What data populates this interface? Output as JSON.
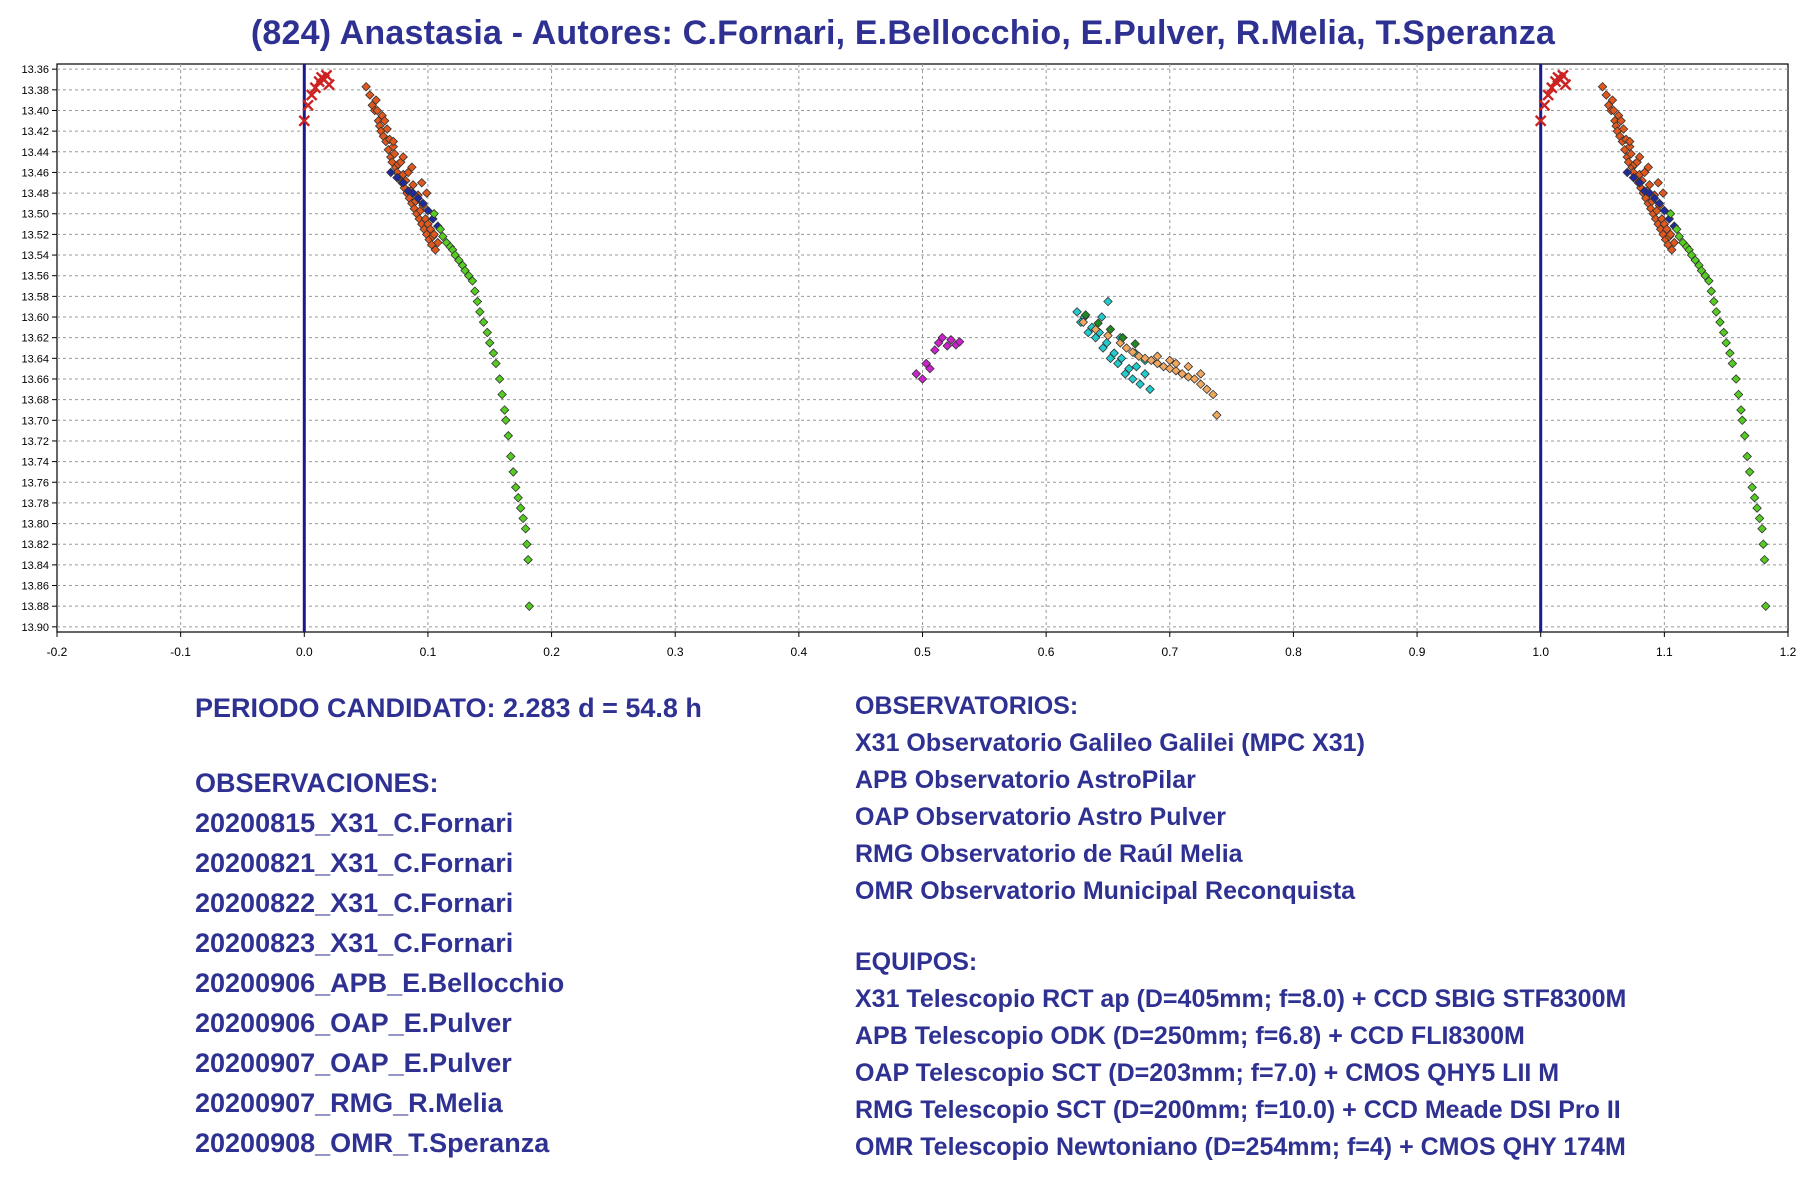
{
  "title": "(824) Anastasia - Autores: C.Fornari, E.Bellocchio, E.Pulver, R.Melia, T.Speranza",
  "left_panel": {
    "period": "PERIODO CANDIDATO: 2.283 d = 54.8 h",
    "observations_header": "OBSERVACIONES:",
    "observations": [
      "20200815_X31_C.Fornari",
      "20200821_X31_C.Fornari",
      "20200822_X31_C.Fornari",
      "20200823_X31_C.Fornari",
      "20200906_APB_E.Bellocchio",
      "20200906_OAP_E.Pulver",
      "20200907_OAP_E.Pulver",
      "20200907_RMG_R.Melia",
      "20200908_OMR_T.Speranza"
    ]
  },
  "right_panel": {
    "observatories_header": "OBSERVATORIOS:",
    "observatories": [
      "X31 Observatorio Galileo Galilei (MPC X31)",
      "APB Observatorio AstroPilar",
      "OAP Observatorio Astro Pulver",
      "RMG Observatorio de Raúl Melia",
      "OMR Observatorio Municipal Reconquista"
    ],
    "equipment_header": "EQUIPOS:",
    "equipment": [
      "X31 Telescopio RCT ap (D=405mm; f=8.0) + CCD SBIG STF8300M",
      "APB Telescopio ODK (D=250mm; f=6.8) + CCD FLI8300M",
      "OAP Telescopio SCT (D=203mm; f=7.0) + CMOS QHY5 LII M",
      "RMG Telescopio SCT (D=200mm; f=10.0) + CCD Meade DSI Pro II",
      "OMR Telescopio Newtoniano (D=254mm; f=4) + CMOS QHY 174M"
    ]
  },
  "chart_data": {
    "type": "scatter",
    "title": "(824) Anastasia - Autores: C.Fornari, E.Bellocchio, E.Pulver, R.Melia, T.Speranza",
    "xlabel": "",
    "ylabel": "",
    "xlim": [
      -0.2,
      1.2
    ],
    "ylim": [
      13.355,
      13.905
    ],
    "y_inverted": true,
    "grid": true,
    "x_ticks": [
      "-0.2",
      "-0.1",
      "0.0",
      "0.1",
      "0.2",
      "0.3",
      "0.4",
      "0.5",
      "0.6",
      "0.7",
      "0.8",
      "0.9",
      "1.0",
      "1.1",
      "1.2"
    ],
    "y_ticks": [
      "13.36",
      "13.38",
      "13.40",
      "13.42",
      "13.44",
      "13.46",
      "13.48",
      "13.50",
      "13.52",
      "13.54",
      "13.56",
      "13.58",
      "13.60",
      "13.62",
      "13.64",
      "13.66",
      "13.68",
      "13.70",
      "13.72",
      "13.74",
      "13.76",
      "13.78",
      "13.80",
      "13.82",
      "13.84",
      "13.86",
      "13.88",
      "13.90"
    ],
    "zero_phase_lines": [
      0.0,
      1.0
    ],
    "repeat_offset": 1.0,
    "repeat_xmax": 1.2,
    "series": [
      {
        "color": "#cc2222",
        "marker": "x",
        "points": [
          [
            0.0,
            13.41
          ],
          [
            0.003,
            13.395
          ],
          [
            0.006,
            13.385
          ],
          [
            0.009,
            13.378
          ],
          [
            0.012,
            13.372
          ],
          [
            0.014,
            13.368
          ],
          [
            0.016,
            13.37
          ],
          [
            0.018,
            13.366
          ],
          [
            0.02,
            13.375
          ]
        ]
      },
      {
        "color": "#e0581e",
        "marker": "diamond",
        "points": [
          [
            0.05,
            13.377
          ],
          [
            0.053,
            13.385
          ],
          [
            0.055,
            13.395
          ],
          [
            0.057,
            13.4
          ],
          [
            0.058,
            13.39
          ],
          [
            0.06,
            13.41
          ],
          [
            0.061,
            13.415
          ],
          [
            0.062,
            13.42
          ],
          [
            0.063,
            13.405
          ],
          [
            0.064,
            13.425
          ],
          [
            0.066,
            13.43
          ],
          [
            0.067,
            13.418
          ],
          [
            0.068,
            13.438
          ],
          [
            0.069,
            13.428
          ],
          [
            0.07,
            13.445
          ],
          [
            0.071,
            13.45
          ],
          [
            0.072,
            13.435
          ],
          [
            0.073,
            13.442
          ],
          [
            0.074,
            13.455
          ],
          [
            0.075,
            13.46
          ],
          [
            0.076,
            13.452
          ],
          [
            0.077,
            13.465
          ],
          [
            0.078,
            13.45
          ],
          [
            0.079,
            13.47
          ],
          [
            0.08,
            13.462
          ],
          [
            0.081,
            13.475
          ],
          [
            0.082,
            13.468
          ],
          [
            0.083,
            13.48
          ],
          [
            0.084,
            13.46
          ],
          [
            0.085,
            13.485
          ],
          [
            0.086,
            13.478
          ],
          [
            0.087,
            13.49
          ],
          [
            0.088,
            13.472
          ],
          [
            0.089,
            13.495
          ],
          [
            0.09,
            13.488
          ],
          [
            0.091,
            13.5
          ],
          [
            0.092,
            13.482
          ],
          [
            0.093,
            13.505
          ],
          [
            0.094,
            13.497
          ],
          [
            0.095,
            13.51
          ],
          [
            0.096,
            13.492
          ],
          [
            0.097,
            13.515
          ],
          [
            0.098,
            13.505
          ],
          [
            0.099,
            13.52
          ],
          [
            0.1,
            13.51
          ],
          [
            0.101,
            13.525
          ],
          [
            0.102,
            13.515
          ],
          [
            0.103,
            13.53
          ],
          [
            0.104,
            13.522
          ],
          [
            0.106,
            13.535
          ],
          [
            0.108,
            13.528
          ],
          [
            0.105,
            13.52
          ],
          [
            0.099,
            13.48
          ],
          [
            0.095,
            13.47
          ],
          [
            0.087,
            13.455
          ],
          [
            0.08,
            13.445
          ],
          [
            0.072,
            13.43
          ],
          [
            0.065,
            13.41
          ],
          [
            0.059,
            13.4
          ]
        ]
      },
      {
        "color": "#1f2a9c",
        "marker": "diamond",
        "points": [
          [
            0.07,
            13.46
          ],
          [
            0.075,
            13.465
          ],
          [
            0.08,
            13.47
          ],
          [
            0.084,
            13.478
          ],
          [
            0.088,
            13.48
          ],
          [
            0.092,
            13.485
          ],
          [
            0.096,
            13.49
          ],
          [
            0.1,
            13.497
          ],
          [
            0.104,
            13.505
          ],
          [
            0.108,
            13.512
          ]
        ]
      },
      {
        "color": "#55cc22",
        "marker": "diamond",
        "points": [
          [
            0.105,
            13.5
          ],
          [
            0.11,
            13.515
          ],
          [
            0.112,
            13.522
          ],
          [
            0.115,
            13.528
          ],
          [
            0.118,
            13.532
          ],
          [
            0.12,
            13.535
          ],
          [
            0.122,
            13.54
          ],
          [
            0.125,
            13.545
          ],
          [
            0.128,
            13.55
          ],
          [
            0.13,
            13.555
          ],
          [
            0.133,
            13.56
          ],
          [
            0.136,
            13.565
          ],
          [
            0.138,
            13.575
          ],
          [
            0.14,
            13.585
          ],
          [
            0.142,
            13.595
          ],
          [
            0.145,
            13.605
          ],
          [
            0.148,
            13.615
          ],
          [
            0.15,
            13.625
          ],
          [
            0.153,
            13.635
          ],
          [
            0.155,
            13.645
          ],
          [
            0.158,
            13.66
          ],
          [
            0.16,
            13.675
          ],
          [
            0.162,
            13.69
          ],
          [
            0.163,
            13.7
          ],
          [
            0.165,
            13.715
          ],
          [
            0.167,
            13.735
          ],
          [
            0.169,
            13.75
          ],
          [
            0.171,
            13.765
          ],
          [
            0.173,
            13.775
          ],
          [
            0.175,
            13.785
          ],
          [
            0.177,
            13.795
          ],
          [
            0.179,
            13.805
          ],
          [
            0.18,
            13.82
          ],
          [
            0.181,
            13.835
          ],
          [
            0.182,
            13.88
          ]
        ]
      },
      {
        "color": "#cc22cc",
        "marker": "diamond",
        "points": [
          [
            0.495,
            13.655
          ],
          [
            0.5,
            13.66
          ],
          [
            0.503,
            13.645
          ],
          [
            0.506,
            13.65
          ],
          [
            0.51,
            13.632
          ],
          [
            0.513,
            13.625
          ],
          [
            0.516,
            13.62
          ],
          [
            0.52,
            13.628
          ],
          [
            0.523,
            13.622
          ],
          [
            0.527,
            13.627
          ],
          [
            0.53,
            13.624
          ]
        ]
      },
      {
        "color": "#22cccc",
        "marker": "diamond",
        "points": [
          [
            0.625,
            13.595
          ],
          [
            0.628,
            13.605
          ],
          [
            0.631,
            13.6
          ],
          [
            0.634,
            13.615
          ],
          [
            0.637,
            13.61
          ],
          [
            0.64,
            13.62
          ],
          [
            0.643,
            13.615
          ],
          [
            0.646,
            13.63
          ],
          [
            0.649,
            13.625
          ],
          [
            0.652,
            13.64
          ],
          [
            0.655,
            13.635
          ],
          [
            0.658,
            13.645
          ],
          [
            0.661,
            13.64
          ],
          [
            0.664,
            13.655
          ],
          [
            0.667,
            13.65
          ],
          [
            0.67,
            13.66
          ],
          [
            0.673,
            13.648
          ],
          [
            0.676,
            13.665
          ],
          [
            0.68,
            13.655
          ],
          [
            0.684,
            13.67
          ],
          [
            0.65,
            13.585
          ],
          [
            0.645,
            13.6
          ],
          [
            0.66,
            13.62
          ],
          [
            0.672,
            13.635
          ],
          [
            0.68,
            13.642
          ]
        ]
      },
      {
        "color": "#f0a860",
        "marker": "diamond",
        "points": [
          [
            0.63,
            13.605
          ],
          [
            0.64,
            13.612
          ],
          [
            0.65,
            13.618
          ],
          [
            0.66,
            13.625
          ],
          [
            0.665,
            13.63
          ],
          [
            0.67,
            13.634
          ],
          [
            0.675,
            13.638
          ],
          [
            0.68,
            13.64
          ],
          [
            0.685,
            13.642
          ],
          [
            0.69,
            13.645
          ],
          [
            0.695,
            13.648
          ],
          [
            0.7,
            13.65
          ],
          [
            0.705,
            13.652
          ],
          [
            0.71,
            13.655
          ],
          [
            0.715,
            13.658
          ],
          [
            0.72,
            13.66
          ],
          [
            0.725,
            13.665
          ],
          [
            0.73,
            13.67
          ],
          [
            0.735,
            13.675
          ],
          [
            0.738,
            13.695
          ],
          [
            0.715,
            13.648
          ],
          [
            0.705,
            13.645
          ],
          [
            0.725,
            13.655
          ],
          [
            0.69,
            13.638
          ],
          [
            0.7,
            13.642
          ]
        ]
      },
      {
        "color": "#228822",
        "marker": "diamond",
        "points": [
          [
            0.632,
            13.598
          ],
          [
            0.642,
            13.606
          ],
          [
            0.652,
            13.612
          ],
          [
            0.662,
            13.62
          ],
          [
            0.672,
            13.626
          ]
        ]
      }
    ]
  }
}
